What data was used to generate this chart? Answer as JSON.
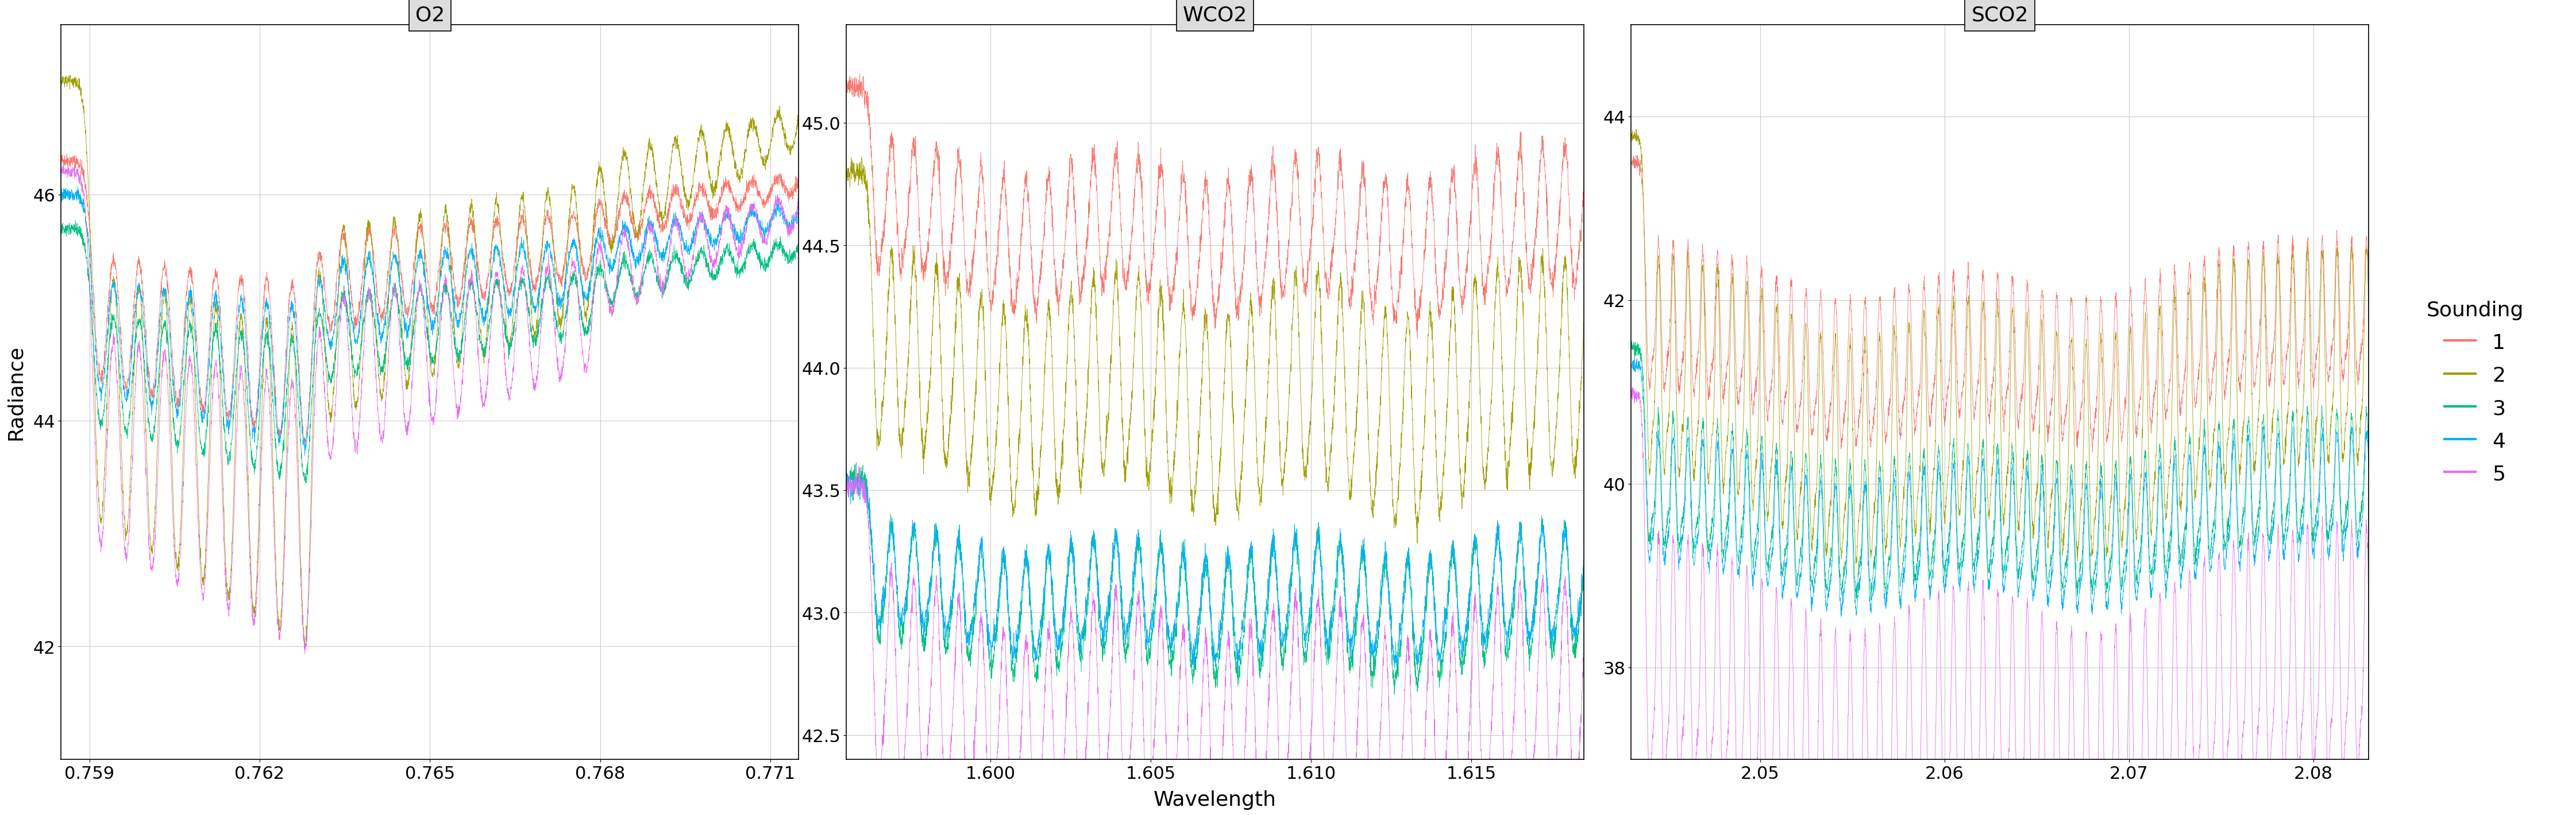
{
  "panels": [
    {
      "title": "O2",
      "xlim": [
        0.7585,
        0.7715
      ],
      "ylim": [
        41.0,
        47.5
      ],
      "xticks": [
        0.759,
        0.762,
        0.765,
        0.768,
        0.771
      ],
      "yticks": [
        42,
        44,
        46
      ],
      "xticklabels": [
        "0.759",
        "0.762",
        "0.765",
        "0.768",
        "0.771"
      ]
    },
    {
      "title": "WCO2",
      "xlim": [
        1.5955,
        1.6185
      ],
      "ylim": [
        42.4,
        45.4
      ],
      "xticks": [
        1.6,
        1.605,
        1.61,
        1.615
      ],
      "yticks": [
        42.5,
        43.0,
        43.5,
        44.0,
        44.5,
        45.0
      ],
      "xticklabels": [
        "1.600",
        "1.605",
        "1.610",
        "1.615"
      ]
    },
    {
      "title": "SCO2",
      "xlim": [
        2.043,
        2.083
      ],
      "ylim": [
        37.0,
        45.0
      ],
      "xticks": [
        2.05,
        2.06,
        2.07,
        2.08
      ],
      "yticks": [
        38,
        40,
        42,
        44
      ],
      "xticklabels": [
        "2.05",
        "2.06",
        "2.07",
        "2.08"
      ]
    }
  ],
  "sounding_colors": [
    "#F8766D",
    "#9E9E00",
    "#00BF7D",
    "#00B0F6",
    "#E76BF3"
  ],
  "sounding_labels": [
    "1",
    "2",
    "3",
    "4",
    "5"
  ],
  "ylabel": "Radiance",
  "xlabel": "Wavelength",
  "background_color": "#FFFFFF",
  "panel_bg": "#FFFFFF",
  "grid_color": "#CCCCCC",
  "title_bg": "#DDDDDD",
  "line_width": 0.6,
  "legend_title": "Sounding"
}
